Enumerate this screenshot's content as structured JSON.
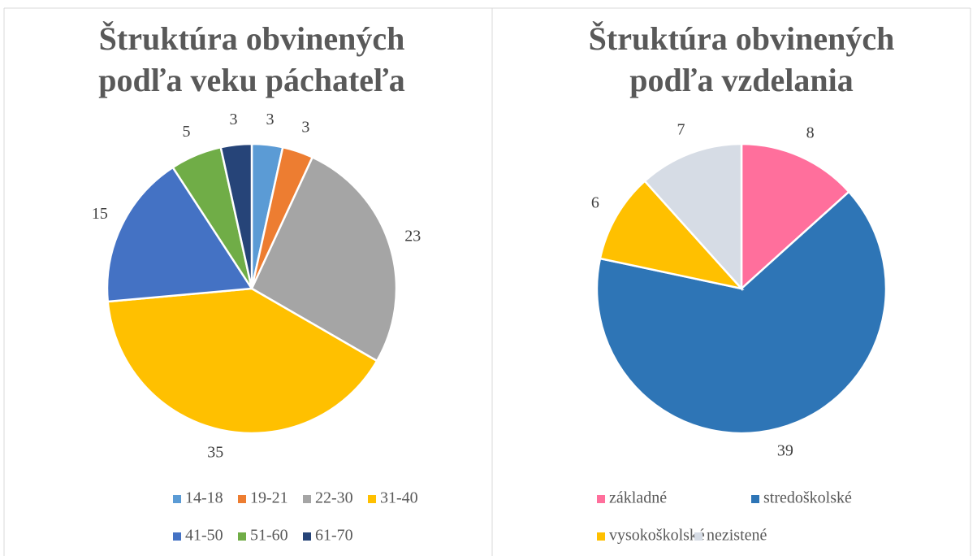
{
  "chart_data": [
    {
      "type": "pie",
      "title": [
        "Štruktúra obvinených",
        "podľa veku páchateľa"
      ],
      "categories": [
        "14-18",
        "19-21",
        "22-30",
        "31-40",
        "41-50",
        "51-60",
        "61-70"
      ],
      "values": [
        3,
        3,
        23,
        35,
        15,
        5,
        3
      ],
      "colors": [
        "#5b9bd5",
        "#ed7d31",
        "#a5a5a5",
        "#ffc000",
        "#4472c4",
        "#70ad47",
        "#264478"
      ],
      "legend": "bottom"
    },
    {
      "type": "pie",
      "title": [
        "Štruktúra obvinených",
        "podľa vzdelania"
      ],
      "categories": [
        "základné",
        "stredoškolské",
        "vysokoškolské",
        "nezistené"
      ],
      "values": [
        8,
        39,
        6,
        7
      ],
      "colors": [
        "#ff6f9c",
        "#2e75b6",
        "#ffc000",
        "#d6dce5"
      ],
      "legend": "bottom"
    }
  ]
}
